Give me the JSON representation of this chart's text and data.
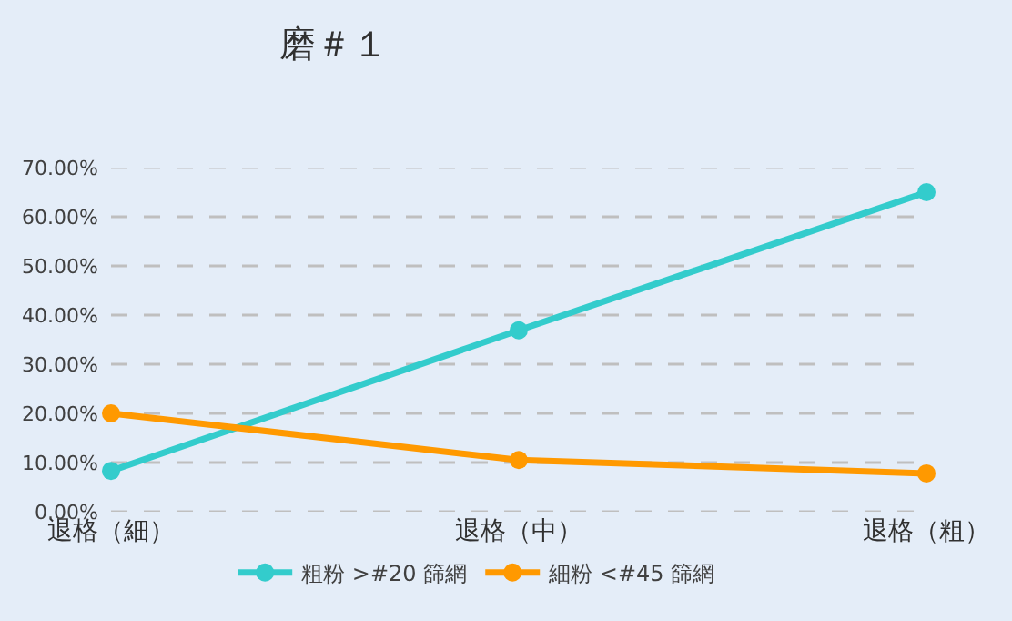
{
  "chart_data": {
    "type": "line",
    "title": "磨＃１",
    "categories": [
      "退格（細）",
      "退格（中）",
      "退格（粗）"
    ],
    "series": [
      {
        "name": "粗粉 >#20 篩網",
        "color": "#33cccc",
        "values": [
          8.3,
          36.9,
          65.0
        ]
      },
      {
        "name": "細粉 <#45 篩網",
        "color": "#ff9900",
        "values": [
          20.0,
          10.5,
          7.8
        ]
      }
    ],
    "ylim": [
      0,
      70
    ],
    "yticks": [
      {
        "value": 0,
        "label": "0.00%"
      },
      {
        "value": 10,
        "label": "10.00%"
      },
      {
        "value": 20,
        "label": "20.00%"
      },
      {
        "value": 30,
        "label": "30.00%"
      },
      {
        "value": 40,
        "label": "40.00%"
      },
      {
        "value": 50,
        "label": "50.00%"
      },
      {
        "value": 60,
        "label": "60.00%"
      },
      {
        "value": 70,
        "label": "70.00%"
      }
    ],
    "grid": "y",
    "legend": "bottom",
    "marker": "circle",
    "line_style": "solid"
  }
}
